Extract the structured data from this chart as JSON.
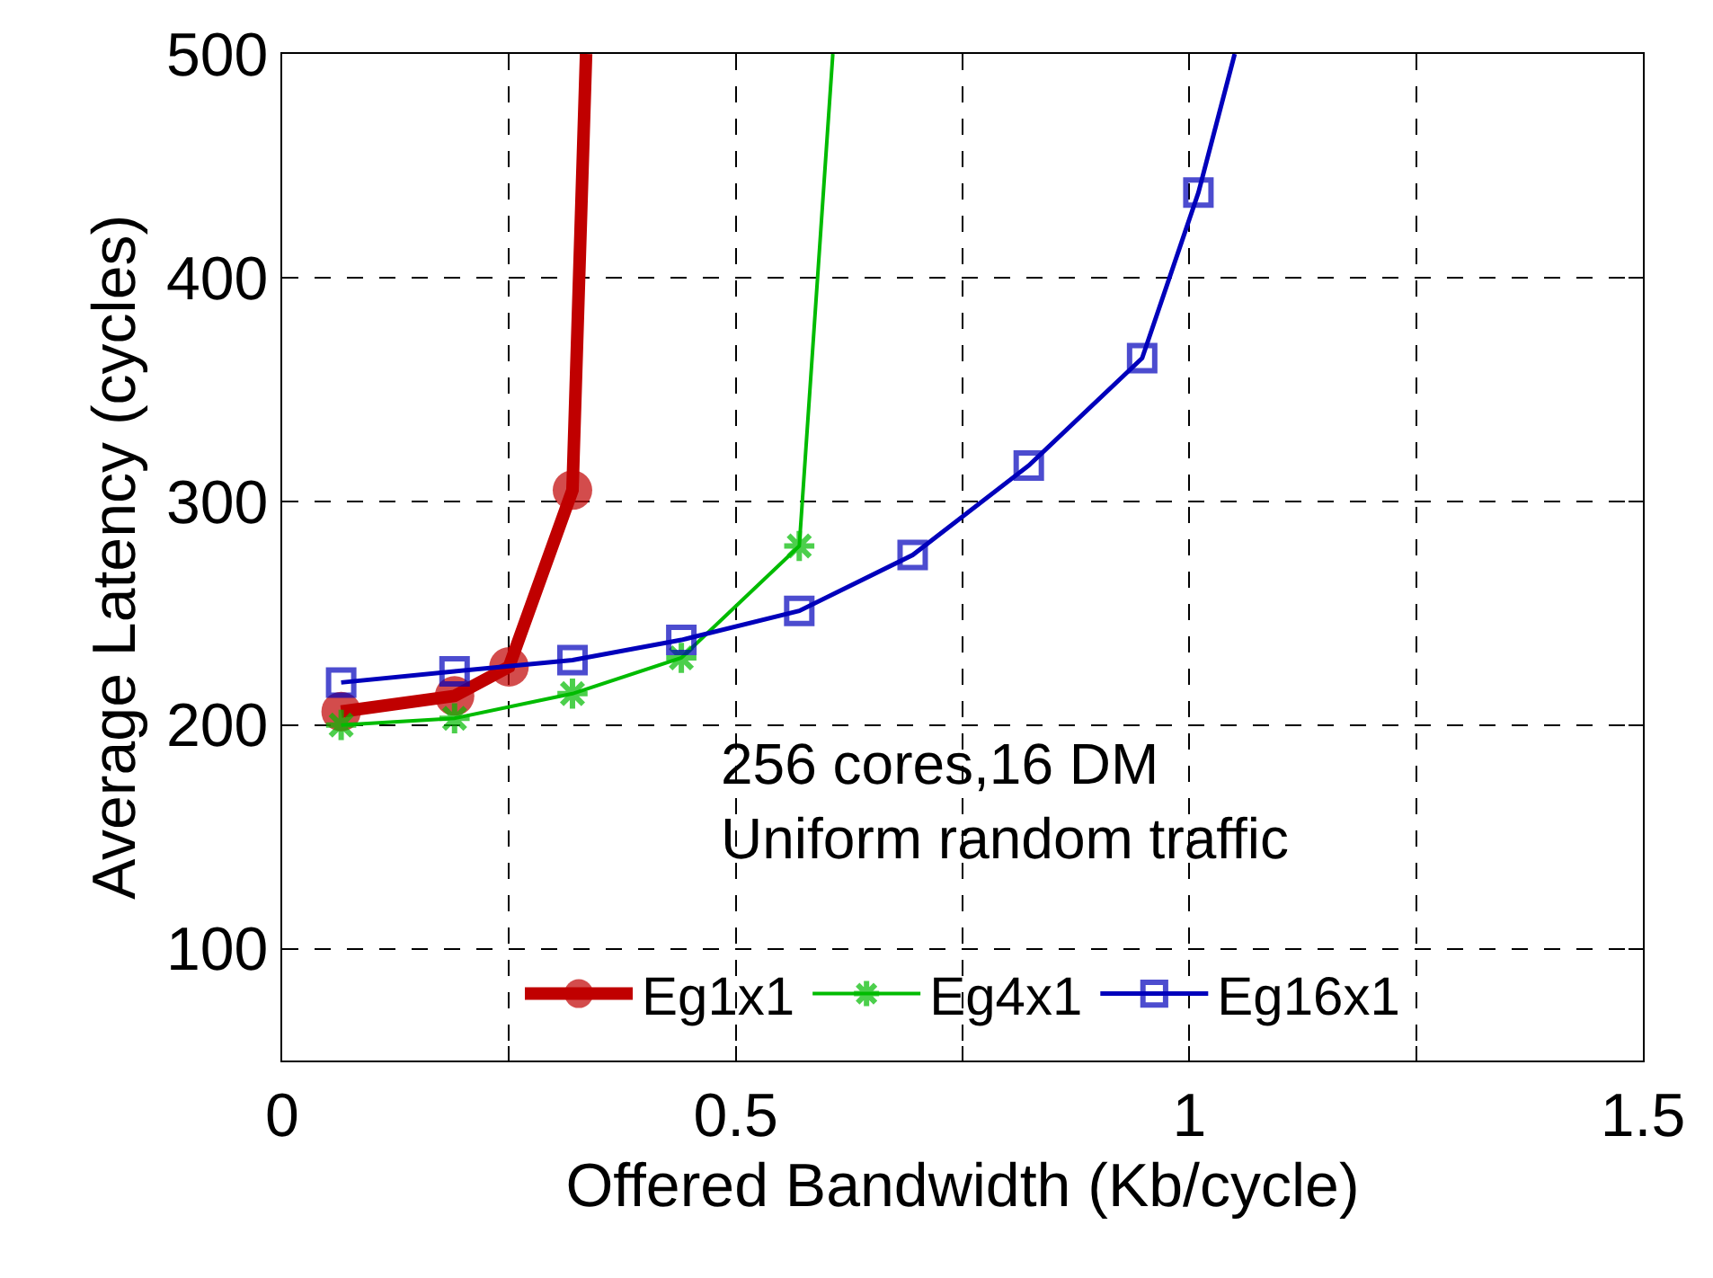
{
  "chart_data": {
    "type": "line",
    "xlabel": "Offered Bandwidth (Kb/cycle)",
    "ylabel": "Average Latency (cycles)",
    "annotations": [
      "256 cores,16 DM\nUniform random traffic"
    ],
    "series": [
      {
        "name": "Eg1x1",
        "color": "#c00000",
        "marker": "circle",
        "x": [
          0.065,
          0.19,
          0.25,
          0.32,
          0.335
        ],
        "values": [
          206,
          213,
          226,
          305,
          500
        ]
      },
      {
        "name": "Eg4x1",
        "color": "#00bb00",
        "marker": "cross",
        "x": [
          0.065,
          0.19,
          0.32,
          0.44,
          0.57,
          0.607
        ],
        "values": [
          200,
          203,
          214,
          230,
          280,
          500
        ]
      },
      {
        "name": "Eg16x1",
        "color": "#0000bb",
        "marker": "square",
        "x": [
          0.065,
          0.19,
          0.32,
          0.44,
          0.57,
          0.695,
          0.823,
          0.948,
          1.01,
          1.05
        ],
        "values": [
          219,
          224,
          229,
          238,
          251,
          276,
          316,
          364,
          438,
          500
        ]
      }
    ],
    "xlim": [
      0,
      1.5
    ],
    "ylim": [
      50,
      500
    ],
    "xticks": [
      0,
      {
        "value": 0.25,
        "label": null
      },
      0.5,
      {
        "value": 0.75,
        "label": null
      },
      1,
      {
        "value": 1.25,
        "label": null
      },
      1.5
    ],
    "yticks": [
      100,
      200,
      300,
      400,
      500
    ],
    "grid": true,
    "legend": "bottom",
    "line_style": "solid"
  }
}
